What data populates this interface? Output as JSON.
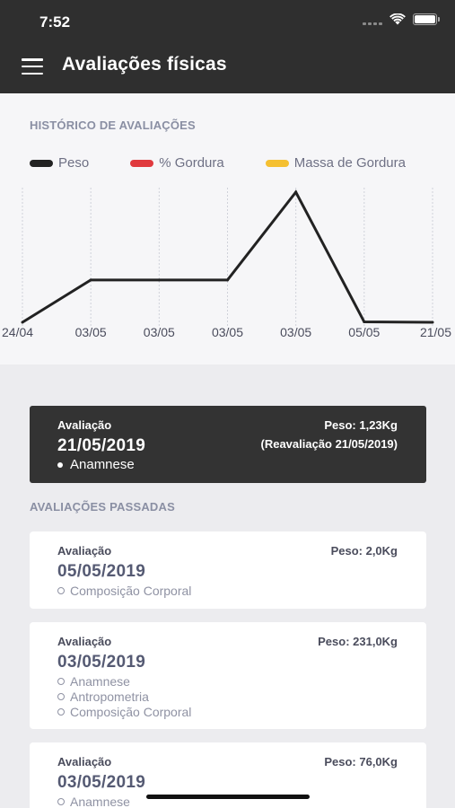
{
  "status_bar": {
    "time": "7:52"
  },
  "app_bar": {
    "title": "Avaliações físicas",
    "menu_icon": "menu-icon"
  },
  "history": {
    "title": "HISTÓRICO DE AVALIAÇÕES",
    "legend": [
      {
        "label": "Peso",
        "color": "#222222"
      },
      {
        "label": "% Gordura",
        "color": "#e03a3e"
      },
      {
        "label": "Massa de Gordura",
        "color": "#f5c031"
      }
    ]
  },
  "chart_data": {
    "type": "line",
    "categories": [
      "24/04",
      "03/05",
      "03/05",
      "03/05",
      "03/05",
      "05/05",
      "21/05"
    ],
    "series": [
      {
        "name": "Peso",
        "values": [
          1.23,
          76.0,
          76.0,
          76.0,
          231.0,
          2.0,
          1.23
        ]
      }
    ],
    "grid": "vertical-dotted",
    "legend_position": "top",
    "y_axis_visible": false
  },
  "current": {
    "label": "Avaliação",
    "date": "21/05/2019",
    "weight": "Peso: 1,23Kg",
    "reevaluation": "(Reavaliação 21/05/2019)",
    "items": [
      "Anamnese"
    ]
  },
  "past": {
    "title": "AVALIAÇÕES PASSADAS",
    "cards": [
      {
        "label": "Avaliação",
        "date": "05/05/2019",
        "weight": "Peso: 2,0Kg",
        "items": [
          "Composição Corporal"
        ]
      },
      {
        "label": "Avaliação",
        "date": "03/05/2019",
        "weight": "Peso: 231,0Kg",
        "items": [
          "Anamnese",
          "Antropometria",
          "Composição Corporal"
        ]
      },
      {
        "label": "Avaliação",
        "date": "03/05/2019",
        "weight": "Peso: 76,0Kg",
        "items": [
          "Anamnese"
        ]
      }
    ]
  }
}
